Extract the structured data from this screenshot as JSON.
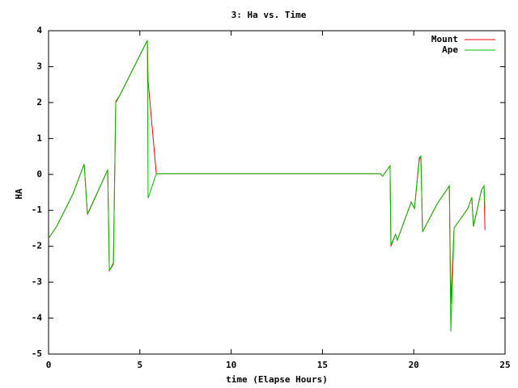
{
  "chart_data": {
    "type": "line",
    "title": "3: Ha vs. Time",
    "x_label": "time (Elapse Hours)",
    "y_label": "HA",
    "x": [
      0,
      0.44,
      1.33,
      1.95,
      2.13,
      3.24,
      3.33,
      3.55,
      3.68,
      3.9,
      5.41,
      5.45,
      5.9,
      9.88,
      18.17,
      18.3,
      18.7,
      18.75,
      19.0,
      19.1,
      19.86,
      20.04,
      20.3,
      20.39,
      20.48,
      21.28,
      21.95,
      22.03,
      22.21,
      22.96,
      23.18,
      23.27,
      23.71,
      23.85,
      23.9
    ],
    "series": [
      {
        "name": "Mount",
        "color": "#ff0000",
        "values": [
          -1.78,
          -1.45,
          -0.55,
          0.29,
          -1.12,
          0.13,
          -2.68,
          -2.5,
          2.0,
          2.2,
          3.73,
          2.6,
          0.02,
          0.02,
          0.02,
          -0.05,
          0.24,
          -2.0,
          -1.67,
          -1.83,
          -0.77,
          -0.95,
          0.4,
          0.51,
          -1.6,
          -0.82,
          -0.32,
          -3.6,
          -1.49,
          -0.95,
          -0.64,
          -1.45,
          -0.43,
          -0.32,
          -1.55
        ]
      },
      {
        "name": "Ape",
        "color": "#00c000",
        "values": [
          -1.78,
          -1.45,
          -0.55,
          0.29,
          -1.1,
          0.13,
          -2.68,
          -2.46,
          2.04,
          2.2,
          3.73,
          -0.66,
          0.02,
          0.02,
          0.02,
          -0.05,
          0.24,
          -1.96,
          -1.67,
          -1.83,
          -0.77,
          -0.95,
          0.47,
          0.51,
          -1.6,
          -0.82,
          -0.32,
          -4.37,
          -1.49,
          -0.95,
          -0.64,
          -1.45,
          -0.43,
          -0.32,
          -0.95
        ]
      }
    ],
    "xlim": [
      0,
      25
    ],
    "xticks": [
      0,
      5,
      10,
      15,
      20,
      25
    ],
    "ylim": [
      -5,
      4
    ],
    "yticks": [
      -5,
      -4,
      -3,
      -2,
      -1,
      0,
      1,
      2,
      3,
      4
    ],
    "legend": "top-right"
  }
}
